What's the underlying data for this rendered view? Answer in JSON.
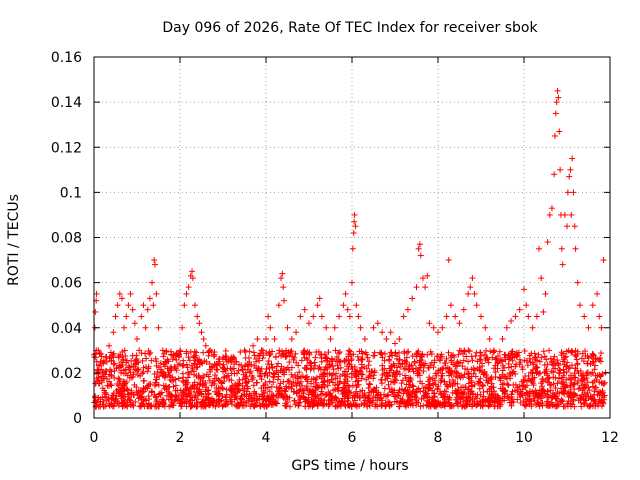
{
  "chart_data": {
    "type": "scatter",
    "title": "Day 096 of 2026, Rate Of TEC Index for receiver sbok",
    "xlabel": "GPS time / hours",
    "ylabel": "ROTI / TECUs",
    "xlim": [
      0,
      12
    ],
    "ylim": [
      0,
      0.16
    ],
    "x_ticks": [
      0,
      2,
      4,
      6,
      8,
      10,
      12
    ],
    "x_tick_labels": [
      "0",
      "2",
      "4",
      "6",
      "8",
      "10",
      "12"
    ],
    "y_ticks": [
      0,
      0.02,
      0.04,
      0.06,
      0.08,
      0.1,
      0.12,
      0.14,
      0.16
    ],
    "y_tick_labels": [
      "0",
      "0.02",
      "0.04",
      "0.06",
      "0.08",
      "0.1",
      "0.12",
      "0.14",
      "0.16"
    ],
    "grid": true,
    "marker": "+",
    "color": "#ff0000",
    "series": [
      {
        "name": "ROTI",
        "points": [
          [
            0.0,
            0.028
          ],
          [
            0.02,
            0.04
          ],
          [
            0.03,
            0.047
          ],
          [
            0.05,
            0.052
          ],
          [
            0.06,
            0.055
          ],
          [
            0.1,
            0.03
          ],
          [
            0.15,
            0.025
          ],
          [
            0.2,
            0.02
          ],
          [
            0.35,
            0.032
          ],
          [
            0.45,
            0.038
          ],
          [
            0.5,
            0.045
          ],
          [
            0.55,
            0.05
          ],
          [
            0.6,
            0.055
          ],
          [
            0.65,
            0.053
          ],
          [
            0.7,
            0.04
          ],
          [
            0.75,
            0.045
          ],
          [
            0.8,
            0.05
          ],
          [
            0.85,
            0.055
          ],
          [
            0.9,
            0.048
          ],
          [
            0.95,
            0.042
          ],
          [
            1.0,
            0.035
          ],
          [
            1.05,
            0.03
          ],
          [
            1.1,
            0.045
          ],
          [
            1.15,
            0.05
          ],
          [
            1.2,
            0.04
          ],
          [
            1.25,
            0.048
          ],
          [
            1.3,
            0.053
          ],
          [
            1.35,
            0.06
          ],
          [
            1.38,
            0.05
          ],
          [
            1.4,
            0.07
          ],
          [
            1.42,
            0.068
          ],
          [
            1.45,
            0.055
          ],
          [
            1.5,
            0.04
          ],
          [
            1.6,
            0.03
          ],
          [
            1.7,
            0.025
          ],
          [
            1.8,
            0.028
          ],
          [
            1.9,
            0.022
          ],
          [
            2.0,
            0.03
          ],
          [
            2.05,
            0.04
          ],
          [
            2.1,
            0.05
          ],
          [
            2.15,
            0.055
          ],
          [
            2.2,
            0.058
          ],
          [
            2.25,
            0.063
          ],
          [
            2.28,
            0.065
          ],
          [
            2.3,
            0.062
          ],
          [
            2.35,
            0.05
          ],
          [
            2.4,
            0.045
          ],
          [
            2.45,
            0.042
          ],
          [
            2.5,
            0.038
          ],
          [
            2.55,
            0.035
          ],
          [
            2.6,
            0.032
          ],
          [
            2.7,
            0.03
          ],
          [
            2.8,
            0.028
          ],
          [
            2.9,
            0.025
          ],
          [
            3.0,
            0.027
          ],
          [
            3.1,
            0.022
          ],
          [
            3.3,
            0.025
          ],
          [
            3.5,
            0.03
          ],
          [
            3.7,
            0.032
          ],
          [
            3.8,
            0.035
          ],
          [
            3.9,
            0.03
          ],
          [
            4.0,
            0.035
          ],
          [
            4.05,
            0.045
          ],
          [
            4.1,
            0.04
          ],
          [
            4.2,
            0.035
          ],
          [
            4.3,
            0.05
          ],
          [
            4.35,
            0.062
          ],
          [
            4.38,
            0.064
          ],
          [
            4.4,
            0.058
          ],
          [
            4.42,
            0.052
          ],
          [
            4.5,
            0.04
          ],
          [
            4.6,
            0.035
          ],
          [
            4.7,
            0.038
          ],
          [
            4.8,
            0.045
          ],
          [
            4.9,
            0.048
          ],
          [
            5.0,
            0.042
          ],
          [
            5.1,
            0.045
          ],
          [
            5.2,
            0.05
          ],
          [
            5.25,
            0.053
          ],
          [
            5.3,
            0.045
          ],
          [
            5.4,
            0.04
          ],
          [
            5.5,
            0.035
          ],
          [
            5.6,
            0.04
          ],
          [
            5.7,
            0.045
          ],
          [
            5.8,
            0.05
          ],
          [
            5.85,
            0.055
          ],
          [
            5.9,
            0.048
          ],
          [
            5.95,
            0.045
          ],
          [
            6.0,
            0.06
          ],
          [
            6.02,
            0.075
          ],
          [
            6.04,
            0.082
          ],
          [
            6.05,
            0.087
          ],
          [
            6.06,
            0.09
          ],
          [
            6.08,
            0.085
          ],
          [
            6.1,
            0.05
          ],
          [
            6.15,
            0.045
          ],
          [
            6.2,
            0.04
          ],
          [
            6.3,
            0.035
          ],
          [
            6.5,
            0.04
          ],
          [
            6.6,
            0.042
          ],
          [
            6.7,
            0.038
          ],
          [
            6.8,
            0.035
          ],
          [
            6.9,
            0.038
          ],
          [
            7.0,
            0.033
          ],
          [
            7.1,
            0.035
          ],
          [
            7.2,
            0.045
          ],
          [
            7.3,
            0.048
          ],
          [
            7.4,
            0.053
          ],
          [
            7.5,
            0.058
          ],
          [
            7.55,
            0.075
          ],
          [
            7.58,
            0.077
          ],
          [
            7.6,
            0.072
          ],
          [
            7.65,
            0.062
          ],
          [
            7.7,
            0.058
          ],
          [
            7.75,
            0.063
          ],
          [
            7.8,
            0.042
          ],
          [
            7.9,
            0.04
          ],
          [
            8.0,
            0.038
          ],
          [
            8.1,
            0.04
          ],
          [
            8.2,
            0.045
          ],
          [
            8.25,
            0.07
          ],
          [
            8.3,
            0.05
          ],
          [
            8.4,
            0.045
          ],
          [
            8.5,
            0.042
          ],
          [
            8.6,
            0.048
          ],
          [
            8.7,
            0.055
          ],
          [
            8.75,
            0.058
          ],
          [
            8.8,
            0.062
          ],
          [
            8.85,
            0.055
          ],
          [
            8.9,
            0.05
          ],
          [
            9.0,
            0.045
          ],
          [
            9.1,
            0.04
          ],
          [
            9.2,
            0.035
          ],
          [
            9.3,
            0.03
          ],
          [
            9.5,
            0.035
          ],
          [
            9.6,
            0.04
          ],
          [
            9.7,
            0.043
          ],
          [
            9.8,
            0.045
          ],
          [
            9.9,
            0.048
          ],
          [
            10.0,
            0.057
          ],
          [
            10.05,
            0.05
          ],
          [
            10.1,
            0.045
          ],
          [
            10.2,
            0.04
          ],
          [
            10.3,
            0.045
          ],
          [
            10.35,
            0.075
          ],
          [
            10.4,
            0.062
          ],
          [
            10.45,
            0.047
          ],
          [
            10.5,
            0.055
          ],
          [
            10.55,
            0.078
          ],
          [
            10.6,
            0.09
          ],
          [
            10.65,
            0.093
          ],
          [
            10.7,
            0.108
          ],
          [
            10.72,
            0.125
          ],
          [
            10.74,
            0.135
          ],
          [
            10.76,
            0.14
          ],
          [
            10.78,
            0.145
          ],
          [
            10.8,
            0.142
          ],
          [
            10.82,
            0.127
          ],
          [
            10.84,
            0.11
          ],
          [
            10.86,
            0.09
          ],
          [
            10.88,
            0.075
          ],
          [
            10.9,
            0.068
          ],
          [
            10.95,
            0.09
          ],
          [
            11.0,
            0.085
          ],
          [
            11.02,
            0.1
          ],
          [
            11.05,
            0.107
          ],
          [
            11.08,
            0.11
          ],
          [
            11.1,
            0.09
          ],
          [
            11.12,
            0.115
          ],
          [
            11.15,
            0.1
          ],
          [
            11.18,
            0.085
          ],
          [
            11.2,
            0.075
          ],
          [
            11.25,
            0.06
          ],
          [
            11.3,
            0.05
          ],
          [
            11.4,
            0.045
          ],
          [
            11.5,
            0.04
          ],
          [
            11.6,
            0.05
          ],
          [
            11.7,
            0.055
          ],
          [
            11.75,
            0.045
          ],
          [
            11.8,
            0.04
          ],
          [
            11.85,
            0.07
          ]
        ],
        "baseline_band": {
          "x_start": 0,
          "x_end": 11.9,
          "y_min": 0.005,
          "y_max": 0.03
        }
      }
    ]
  }
}
